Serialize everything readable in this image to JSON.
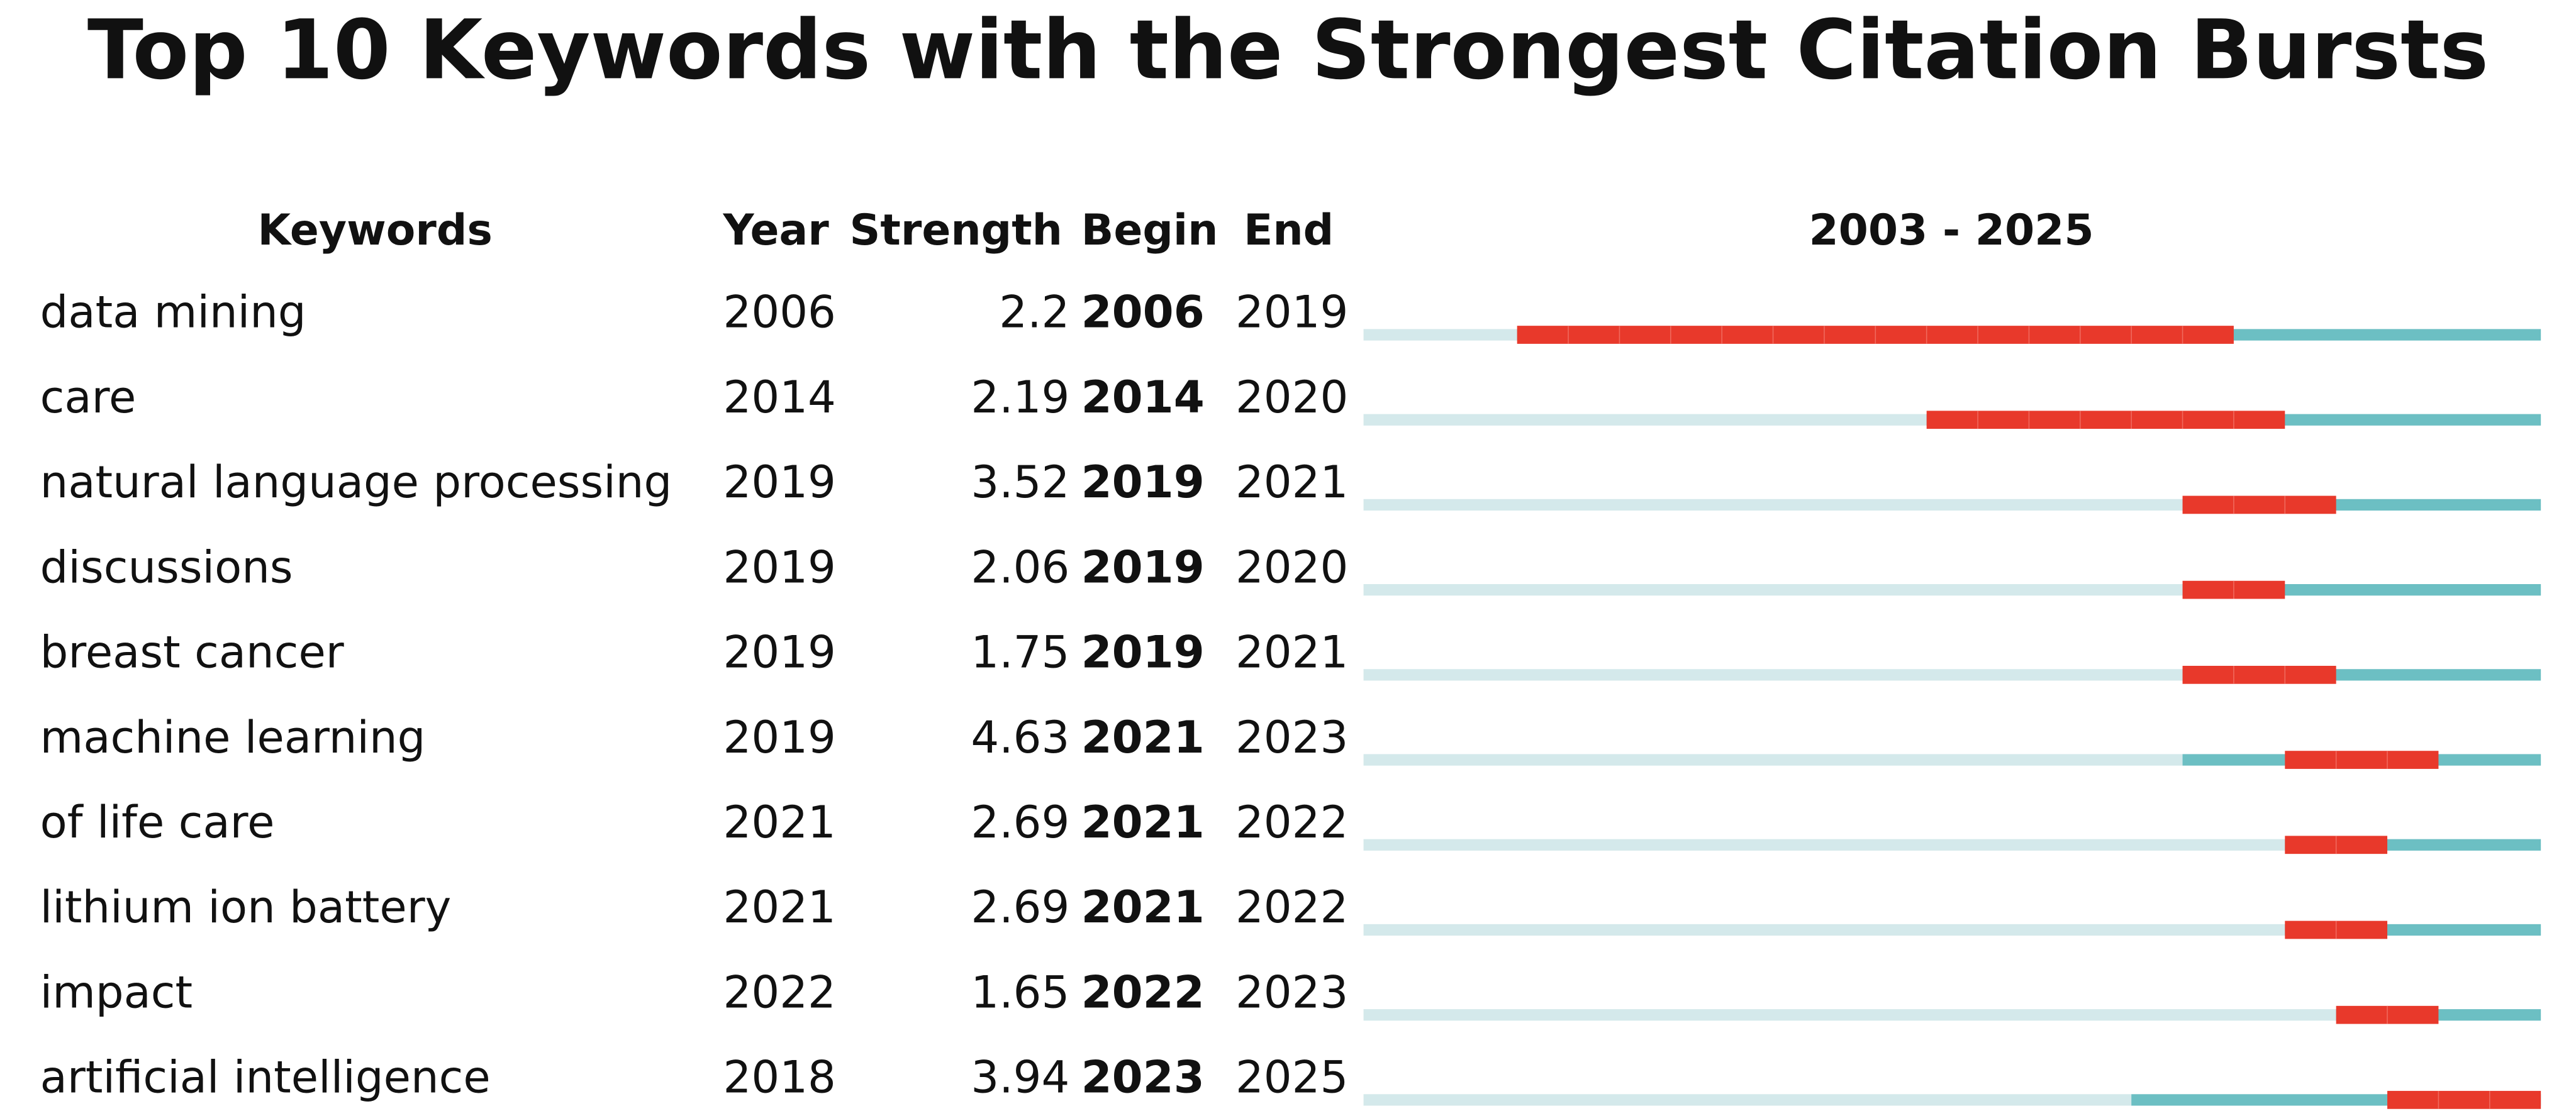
{
  "title": "Top 10 Keywords with the Strongest Citation Bursts",
  "table": {
    "headers": {
      "keyword": "Keywords",
      "year": "Year",
      "strength": "Strength",
      "begin": "Begin",
      "end": "End"
    },
    "timeline": {
      "label": "2003 - 2025",
      "start": 2003,
      "end": 2025
    },
    "colors": {
      "before": "#d4e9eb",
      "after": "#6cbfc3",
      "burst": "#e8392b"
    },
    "rows": [
      {
        "keyword": "data mining",
        "year": 2006,
        "strength": 2.2,
        "begin": 2006,
        "end": 2019
      },
      {
        "keyword": "care",
        "year": 2014,
        "strength": 2.19,
        "begin": 2014,
        "end": 2020
      },
      {
        "keyword": "natural language processing",
        "year": 2019,
        "strength": 3.52,
        "begin": 2019,
        "end": 2021
      },
      {
        "keyword": "discussions",
        "year": 2019,
        "strength": 2.06,
        "begin": 2019,
        "end": 2020
      },
      {
        "keyword": "breast cancer",
        "year": 2019,
        "strength": 1.75,
        "begin": 2019,
        "end": 2021
      },
      {
        "keyword": "machine learning",
        "year": 2019,
        "strength": 4.63,
        "begin": 2021,
        "end": 2023
      },
      {
        "keyword": "of life care",
        "year": 2021,
        "strength": 2.69,
        "begin": 2021,
        "end": 2022
      },
      {
        "keyword": "lithium ion battery",
        "year": 2021,
        "strength": 2.69,
        "begin": 2021,
        "end": 2022
      },
      {
        "keyword": "impact",
        "year": 2022,
        "strength": 1.65,
        "begin": 2022,
        "end": 2023
      },
      {
        "keyword": "artificial intelligence",
        "year": 2018,
        "strength": 3.94,
        "begin": 2023,
        "end": 2025
      }
    ]
  }
}
